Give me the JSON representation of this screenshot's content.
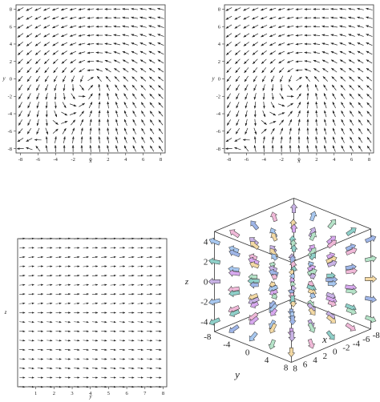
{
  "chart_data": [
    {
      "type": "vector_field",
      "field": "rotational_swirl",
      "xlabel": "x",
      "ylabel": "y",
      "xticks": [
        "-8",
        "-6",
        "-4",
        "-2",
        "0",
        "2",
        "4",
        "6",
        "8"
      ],
      "yticks": [
        "-8",
        "-6",
        "-4",
        "-2",
        "0",
        "2",
        "4",
        "6",
        "8"
      ],
      "xlim": [
        -8.5,
        8.5
      ],
      "ylim": [
        -8.5,
        8.5
      ],
      "grid": false
    },
    {
      "type": "vector_field",
      "field": "rotational_swirl",
      "xlabel": "x",
      "ylabel": "y",
      "xticks": [
        "-8",
        "-6",
        "-4",
        "-2",
        "0",
        "2",
        "4",
        "6",
        "8"
      ],
      "yticks": [
        "-8",
        "-6",
        "-4",
        "-2",
        "0",
        "2",
        "4",
        "6",
        "8"
      ],
      "xlim": [
        -8.5,
        8.5
      ],
      "ylim": [
        -8.5,
        8.5
      ],
      "grid": false
    },
    {
      "type": "vector_field",
      "field": "horizontal_slope_field",
      "xlabel": "y",
      "ylabel": "z",
      "xticks": [
        "1",
        "2",
        "3",
        "4",
        "5",
        "6",
        "7",
        "8"
      ],
      "yticks": [],
      "xlim": [
        0,
        8.2
      ],
      "ylim": [
        -8,
        8
      ],
      "grid": false
    },
    {
      "type": "vector_field_3d",
      "field": "radial_3d",
      "xlabel": "x",
      "ylabel": "y",
      "zlabel": "z",
      "zticks": [
        "4",
        "2",
        "0",
        "-2",
        "-4"
      ],
      "yticks": [
        "-8",
        "-4",
        "0",
        "4",
        "8"
      ],
      "xticks": [
        "8",
        "6",
        "4",
        "2",
        "0",
        "-2",
        "-4",
        "-6",
        "-8"
      ],
      "xlim": [
        -8,
        8
      ],
      "ylim": [
        -8,
        8
      ],
      "zlim": [
        -5,
        5
      ],
      "grid": false
    }
  ]
}
